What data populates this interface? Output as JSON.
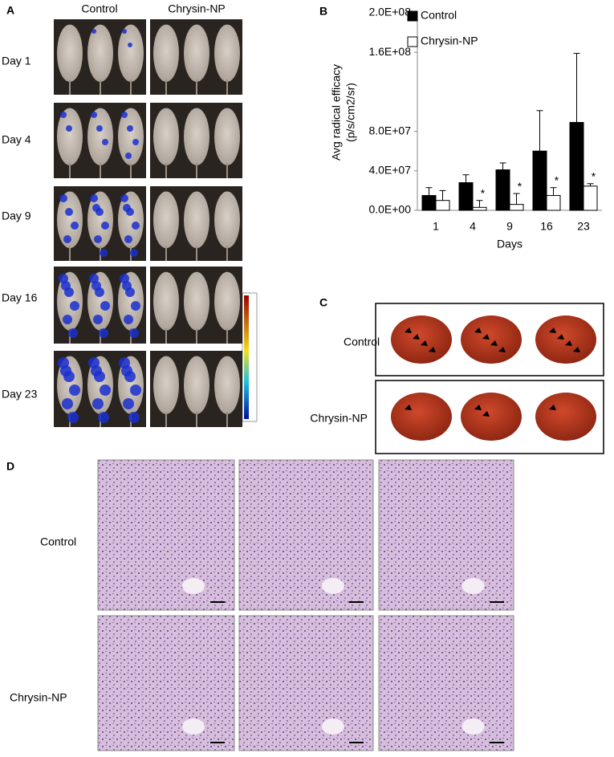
{
  "panel_labels": [
    "A",
    "B",
    "C",
    "D"
  ],
  "panel_a": {
    "columns": [
      "Control",
      "Chrysin-NP"
    ],
    "rows": [
      "Day 1",
      "Day 4",
      "Day 9",
      "Day 16",
      "Day 23"
    ]
  },
  "chart_data": {
    "type": "bar",
    "y_label": [
      "Avg radical efficacy",
      "(p/s/cm2/sr)"
    ],
    "x_label": "Days",
    "categories": [
      "1",
      "4",
      "9",
      "16",
      "23"
    ],
    "series": [
      {
        "name": "Control",
        "color": "#000000",
        "values": [
          15000000,
          28000000,
          41000000,
          60000000,
          89000000
        ],
        "errors": [
          8000000,
          8000000,
          7000000,
          41000000,
          70000000
        ]
      },
      {
        "name": "Chrysin-NP",
        "color": "#ffffff",
        "values": [
          10000000,
          3000000,
          6000000,
          15000000,
          24500000
        ],
        "errors": [
          10000000,
          7000000,
          11000000,
          8000000,
          2500000
        ],
        "annotations": [
          null,
          "*",
          "*",
          "*",
          "*"
        ]
      }
    ],
    "ylim": [
      0,
      200000000
    ],
    "yticks": [
      {
        "value": 0,
        "label": "0.0E+00"
      },
      {
        "value": 40000000,
        "label": "4.0E+07"
      },
      {
        "value": 80000000,
        "label": "8.0E+07"
      },
      {
        "value": 160000000,
        "label": "1.6E+08"
      },
      {
        "value": 200000000,
        "label": "2.0E+08"
      }
    ],
    "legend": "top-left"
  },
  "panel_c": {
    "rows": [
      "Control",
      "Chrysin-NP"
    ]
  },
  "panel_d": {
    "rows": [
      "Control",
      "Chrysin-NP"
    ]
  }
}
